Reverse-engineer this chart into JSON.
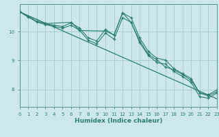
{
  "xlabel": "Humidex (Indice chaleur)",
  "bg_color": "#cce8ea",
  "grid_color": "#aacfcf",
  "line_color": "#2d7d72",
  "spine_color": "#5a9090",
  "xlim": [
    0,
    23
  ],
  "ylim": [
    7.4,
    10.95
  ],
  "x_ticks": [
    0,
    1,
    2,
    3,
    4,
    5,
    6,
    7,
    8,
    9,
    10,
    11,
    12,
    13,
    14,
    15,
    16,
    17,
    18,
    19,
    20,
    21,
    22,
    23
  ],
  "y_ticks": [
    8,
    9,
    10
  ],
  "series": [
    {
      "x": [
        0,
        1,
        2,
        3,
        4,
        5,
        6,
        7,
        8,
        9,
        10,
        11,
        12,
        13,
        14,
        15,
        16,
        17,
        18,
        19,
        20,
        21,
        22,
        23
      ],
      "y": [
        10.68,
        10.52,
        10.35,
        10.28,
        10.22,
        10.18,
        10.3,
        10.12,
        9.78,
        9.68,
        10.08,
        9.88,
        10.65,
        10.48,
        9.78,
        9.32,
        9.08,
        9.02,
        8.72,
        8.55,
        8.38,
        7.88,
        7.82,
        7.98
      ]
    },
    {
      "x": [
        0,
        1,
        2,
        3,
        4,
        5,
        6,
        7,
        8,
        9,
        10,
        11,
        12,
        13,
        14,
        15,
        16,
        17,
        18,
        19,
        20,
        21,
        22,
        23
      ],
      "y": [
        10.68,
        10.5,
        10.33,
        10.24,
        10.18,
        10.12,
        10.22,
        10.04,
        9.7,
        9.58,
        9.95,
        9.74,
        10.48,
        10.32,
        9.62,
        9.18,
        8.93,
        8.88,
        8.62,
        8.45,
        8.25,
        7.75,
        7.7,
        7.88
      ]
    },
    {
      "x": [
        0,
        3,
        6,
        7,
        10,
        11,
        12,
        13,
        14,
        15,
        16,
        17,
        18,
        19,
        20,
        21,
        22,
        23
      ],
      "y": [
        10.68,
        10.28,
        10.32,
        10.04,
        10.02,
        9.88,
        10.65,
        10.32,
        9.68,
        9.22,
        9.02,
        8.78,
        8.68,
        8.52,
        8.32,
        7.88,
        7.78,
        7.92
      ]
    },
    {
      "x": [
        0,
        23
      ],
      "y": [
        10.68,
        7.68
      ]
    }
  ]
}
